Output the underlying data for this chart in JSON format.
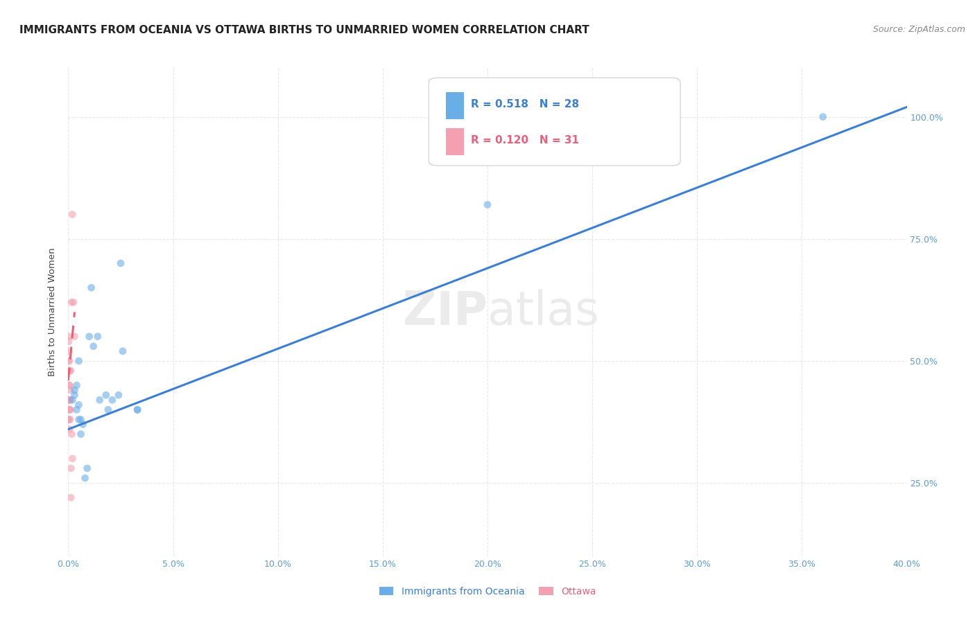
{
  "title": "IMMIGRANTS FROM OCEANIA VS OTTAWA BIRTHS TO UNMARRIED WOMEN CORRELATION CHART",
  "source": "Source: ZipAtlas.com",
  "ylabel": "Births to Unmarried Women",
  "legend_blue_r": "R = 0.518",
  "legend_blue_n": "N = 28",
  "legend_pink_r": "R = 0.120",
  "legend_pink_n": "N = 31",
  "legend_label_blue": "Immigrants from Oceania",
  "legend_label_pink": "Ottawa",
  "watermark_zip": "ZIP",
  "watermark_atlas": "atlas",
  "blue_color": "#6aaee8",
  "pink_color": "#f4a0b0",
  "blue_line_color": "#3a7fd5",
  "pink_line_color": "#e8607a",
  "blue_scatter_x": [
    0.002,
    0.003,
    0.003,
    0.004,
    0.004,
    0.005,
    0.005,
    0.005,
    0.006,
    0.006,
    0.007,
    0.008,
    0.009,
    0.01,
    0.011,
    0.012,
    0.014,
    0.015,
    0.018,
    0.019,
    0.021,
    0.024,
    0.025,
    0.026,
    0.033,
    0.033,
    0.2,
    0.36
  ],
  "blue_scatter_y": [
    0.42,
    0.43,
    0.44,
    0.45,
    0.4,
    0.41,
    0.5,
    0.38,
    0.38,
    0.35,
    0.37,
    0.26,
    0.28,
    0.55,
    0.65,
    0.53,
    0.55,
    0.42,
    0.43,
    0.4,
    0.42,
    0.43,
    0.7,
    0.52,
    0.4,
    0.4,
    0.82,
    1.0
  ],
  "pink_scatter_x": [
    0.0001,
    0.0001,
    0.0002,
    0.0002,
    0.0003,
    0.0003,
    0.0003,
    0.0004,
    0.0004,
    0.0004,
    0.0005,
    0.0005,
    0.0005,
    0.0006,
    0.0006,
    0.0007,
    0.0007,
    0.0008,
    0.0009,
    0.0009,
    0.001,
    0.001,
    0.0011,
    0.0012,
    0.0013,
    0.0015,
    0.0017,
    0.0019,
    0.002,
    0.0025,
    0.003
  ],
  "pink_scatter_y": [
    0.38,
    0.42,
    0.48,
    0.5,
    0.52,
    0.54,
    0.55,
    0.38,
    0.42,
    0.45,
    0.4,
    0.42,
    0.5,
    0.36,
    0.4,
    0.45,
    0.48,
    0.42,
    0.38,
    0.42,
    0.4,
    0.44,
    0.48,
    0.22,
    0.28,
    0.62,
    0.35,
    0.8,
    0.3,
    0.62,
    0.55
  ],
  "blue_line_x": [
    0.0,
    0.4
  ],
  "blue_line_y": [
    0.36,
    1.02
  ],
  "pink_line_x": [
    0.0,
    0.003
  ],
  "pink_line_y": [
    0.46,
    0.6
  ],
  "xlim": [
    0.0,
    0.4
  ],
  "ylim": [
    0.1,
    1.1
  ],
  "grid_color": "#E8E8E8",
  "background_color": "#FFFFFF",
  "title_fontsize": 11,
  "axis_label_fontsize": 9.5,
  "tick_fontsize": 9,
  "legend_fontsize": 11,
  "watermark_fontsize": 48,
  "watermark_color": "#EBEBEB",
  "source_fontsize": 9,
  "scatter_size": 60,
  "scatter_alpha": 0.6,
  "line_width": 2.2
}
